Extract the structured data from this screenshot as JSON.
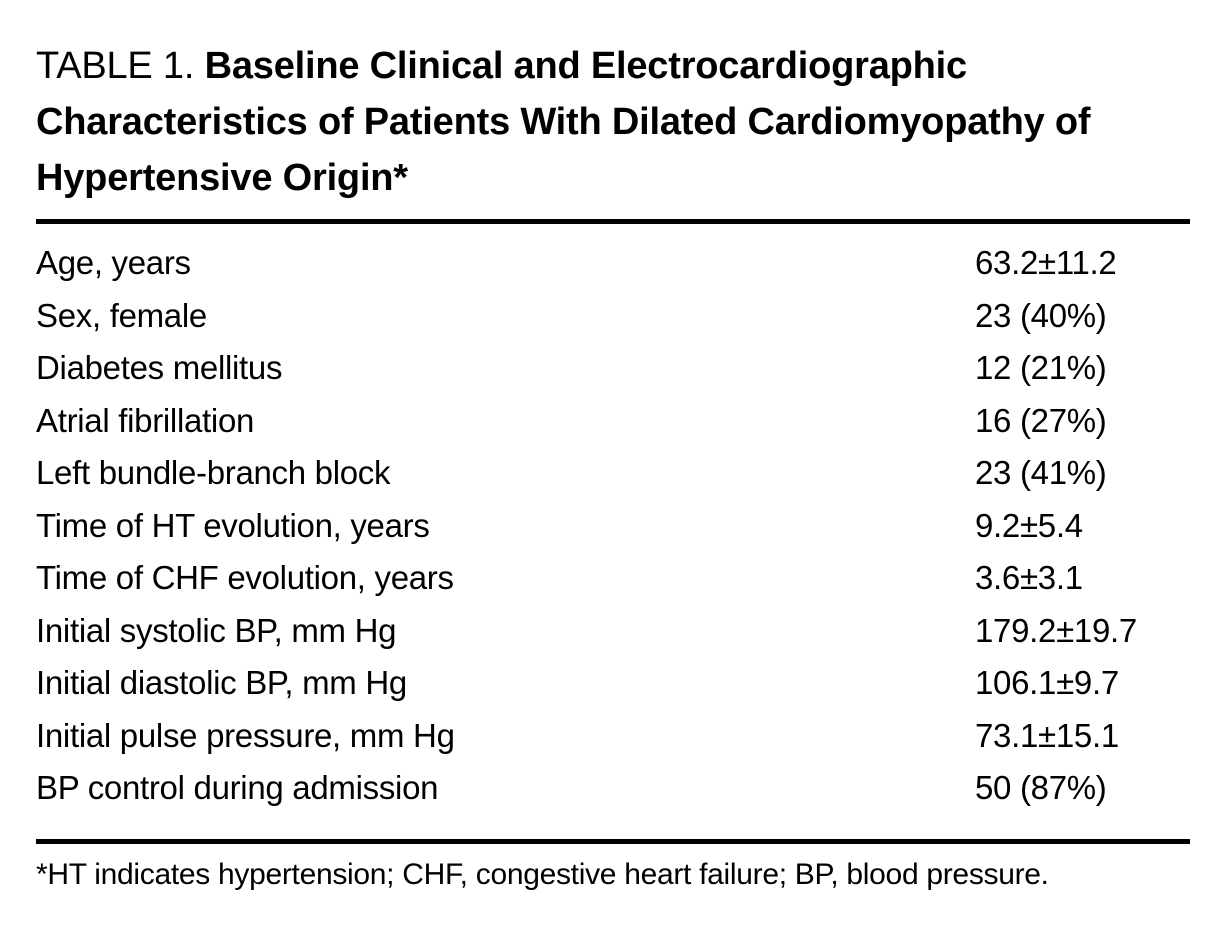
{
  "page": {
    "background": "#ffffff",
    "text_color": "#000000",
    "rule_color": "#000000"
  },
  "table": {
    "caption_label": "TABLE 1.",
    "caption_title": "Baseline Clinical and Electrocardiographic Characteristics of Patients With Dilated Cardiomyopathy of Hypertensive Origin*",
    "rows": [
      {
        "characteristic": "Age, years",
        "value": "63.2±11.2"
      },
      {
        "characteristic": "Sex, female",
        "value": "23 (40%)"
      },
      {
        "characteristic": "Diabetes mellitus",
        "value": "12 (21%)"
      },
      {
        "characteristic": "Atrial fibrillation",
        "value": "16 (27%)"
      },
      {
        "characteristic": "Left bundle-branch block",
        "value": "23 (41%)"
      },
      {
        "characteristic": "Time of HT evolution, years",
        "value": "9.2±5.4"
      },
      {
        "characteristic": "Time of CHF evolution, years",
        "value": "3.6±3.1"
      },
      {
        "characteristic": "Initial systolic BP, mm Hg",
        "value": "179.2±19.7"
      },
      {
        "characteristic": "Initial diastolic BP, mm Hg",
        "value": "106.1±9.7"
      },
      {
        "characteristic": "Initial pulse pressure, mm Hg",
        "value": "73.1±15.1"
      },
      {
        "characteristic": "BP control during admission",
        "value": "50 (87%)"
      }
    ],
    "footnote_marker": "*",
    "footnote": "HT indicates hypertension; CHF, congestive heart failure; BP, blood pressure."
  }
}
